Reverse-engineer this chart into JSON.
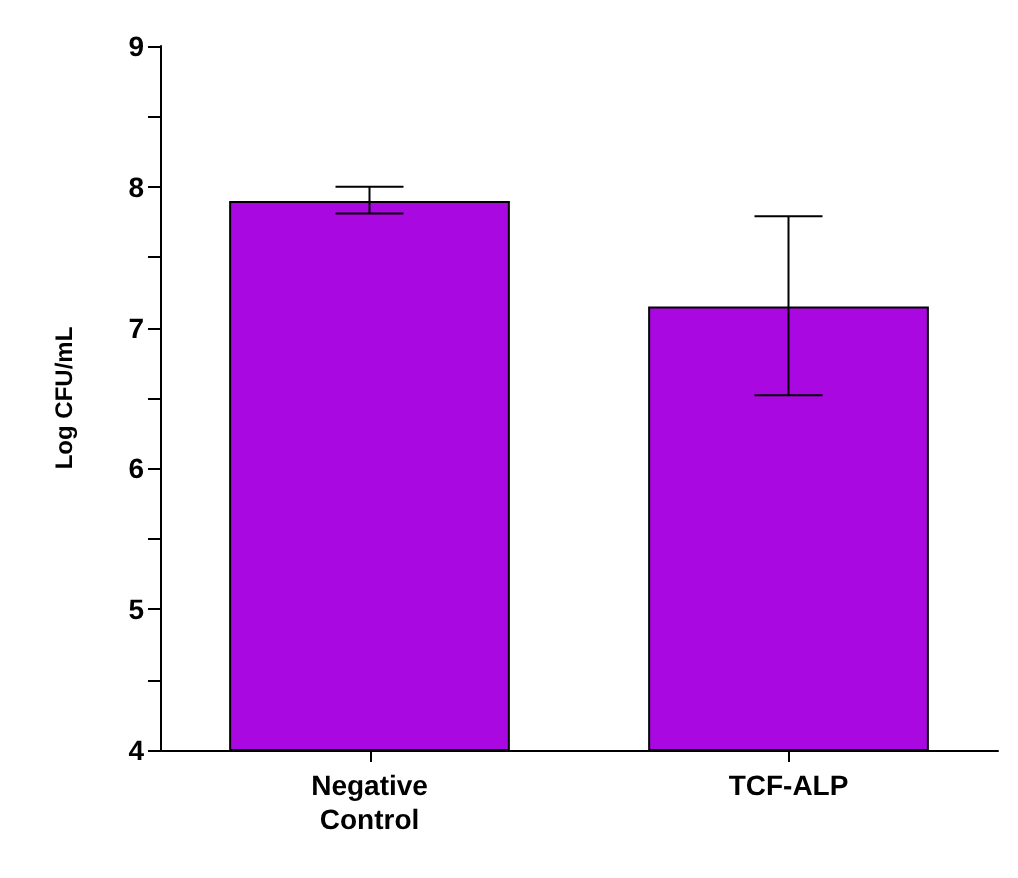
{
  "chart_data": {
    "type": "bar",
    "ylabel": "Log CFU/mL",
    "categories": [
      "Negative\nControl",
      "TCF-ALP"
    ],
    "values": [
      7.9,
      7.15
    ],
    "color": "#aa08e0",
    "errors": [
      [
        7.81,
        8.0
      ],
      [
        6.52,
        7.79
      ]
    ],
    "ylim": [
      4,
      9
    ],
    "yticks": [
      4,
      {
        "value": 4.5,
        "label": null
      },
      5,
      {
        "value": 5.5,
        "label": null
      },
      6,
      {
        "value": 6.5,
        "label": null
      },
      7,
      {
        "value": 7.5,
        "label": null
      },
      8,
      {
        "value": 8.5,
        "label": null
      },
      9
    ],
    "grid": false
  }
}
